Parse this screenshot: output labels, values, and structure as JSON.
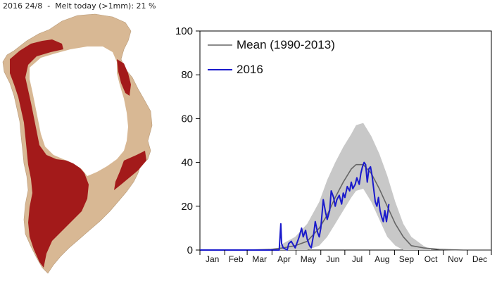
{
  "header": {
    "date": "2016 24/8",
    "separator": "-",
    "melt_label": "Melt today (>1mm):",
    "melt_value": "21 %"
  },
  "colors": {
    "melt": "#a31a1a",
    "land": "#d8b894",
    "ice": "#ffffff",
    "mean_line": "#666666",
    "band": "#c8c8c8",
    "line_2016": "#1a1acc"
  },
  "chart_data": {
    "type": "line",
    "title": "",
    "xlabel": "",
    "ylabel": "",
    "ylim": [
      0,
      100
    ],
    "yticks": [
      0,
      20,
      40,
      60,
      80,
      100
    ],
    "months": [
      "Jan",
      "Feb",
      "Mar",
      "Apr",
      "May",
      "Jun",
      "Jul",
      "Aug",
      "Sep",
      "Oct",
      "Nov",
      "Dec"
    ],
    "legend_position": "top-left",
    "series": [
      {
        "name": "Mean (1990-2013)",
        "color": "#666666",
        "x": [
          1,
          60,
          90,
          105,
          120,
          135,
          150,
          160,
          170,
          180,
          190,
          196,
          205,
          215,
          225,
          235,
          245,
          255,
          265,
          280,
          300,
          330,
          365
        ],
        "y": [
          0,
          0,
          0.3,
          1,
          2,
          4,
          10,
          16,
          24,
          31,
          37,
          39,
          39,
          35,
          28,
          20,
          12,
          6,
          2,
          1,
          0.3,
          0,
          0
        ]
      },
      {
        "name": "2016",
        "color": "#1a1acc",
        "x": [
          1,
          90,
          100,
          102,
          103,
          105,
          110,
          112,
          115,
          120,
          122,
          125,
          128,
          130,
          133,
          135,
          138,
          140,
          143,
          145,
          148,
          150,
          152,
          155,
          158,
          160,
          163,
          165,
          168,
          170,
          172,
          175,
          178,
          180,
          182,
          185,
          188,
          190,
          192,
          195,
          197,
          200,
          202,
          204,
          206,
          208,
          210,
          212,
          214,
          216,
          218,
          220,
          222,
          224,
          226,
          228,
          230,
          232,
          234,
          236,
          237
        ],
        "y": [
          0,
          0,
          0,
          12,
          3,
          1,
          0,
          3,
          4,
          1,
          3,
          6,
          10,
          6,
          9,
          5,
          2,
          1,
          7,
          13,
          8,
          6,
          10,
          23,
          17,
          14,
          18,
          27,
          24,
          20,
          23,
          25,
          21,
          26,
          24,
          29,
          27,
          31,
          28,
          30,
          33,
          30,
          35,
          38,
          40,
          39,
          31,
          37,
          38,
          34,
          28,
          22,
          20,
          24,
          18,
          15,
          13,
          18,
          13,
          18,
          21
        ]
      }
    ],
    "band": {
      "x": [
        100,
        120,
        135,
        150,
        160,
        170,
        180,
        190,
        196,
        205,
        215,
        225,
        235,
        245,
        255,
        265,
        280,
        290
      ],
      "low": [
        0,
        0,
        0,
        2,
        6,
        12,
        18,
        24,
        27,
        28,
        22,
        14,
        6,
        2,
        0,
        0,
        0,
        0
      ],
      "high": [
        2,
        6,
        12,
        22,
        32,
        40,
        47,
        53,
        57,
        58,
        52,
        44,
        34,
        22,
        12,
        6,
        2,
        0
      ]
    }
  }
}
